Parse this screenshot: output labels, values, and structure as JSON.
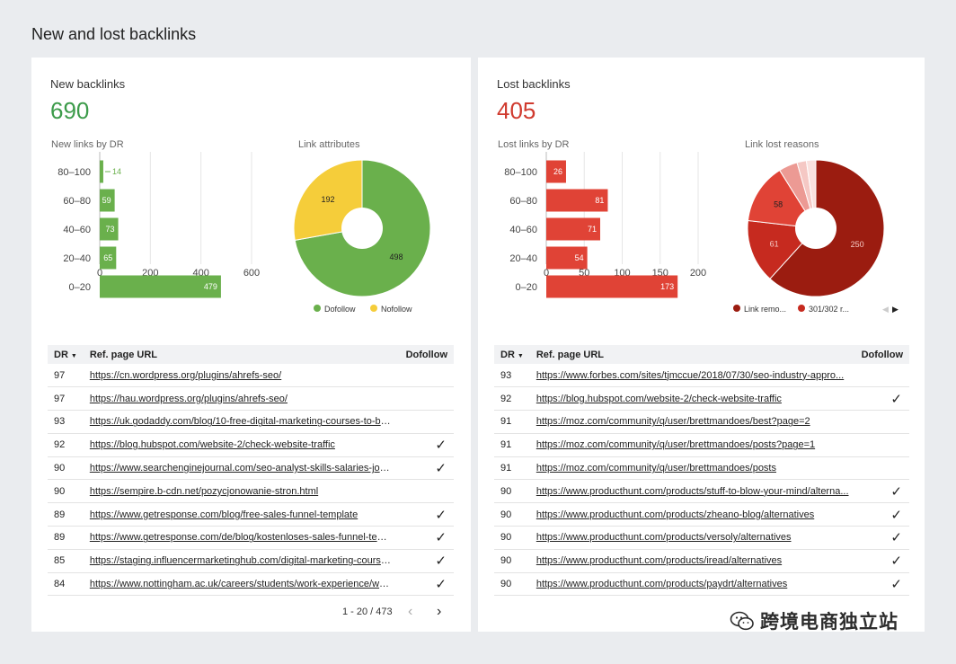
{
  "page": {
    "title": "New and lost backlinks"
  },
  "new_backlinks": {
    "title": "New backlinks",
    "total": "690",
    "bar_title": "New links by DR",
    "pie_title": "Link attributes",
    "color": "#6ab04c",
    "chart_data": {
      "type": "bar",
      "orientation": "horizontal",
      "categories": [
        "80–100",
        "60–80",
        "40–60",
        "20–40",
        "0–20"
      ],
      "values": [
        14,
        59,
        73,
        65,
        479
      ],
      "xlim": [
        0,
        600
      ],
      "xticks": [
        "0",
        "200",
        "400",
        "600"
      ],
      "grid": true
    },
    "pie_data": {
      "type": "pie",
      "donut": true,
      "slices": [
        {
          "name": "Dofollow",
          "value": 498,
          "color": "#6ab04c"
        },
        {
          "name": "Nofollow",
          "value": 192,
          "color": "#f5cd3a"
        }
      ]
    },
    "table": {
      "col_dr": "DR",
      "col_url": "Ref. page URL",
      "col_dofollow": "Dofollow",
      "rows": [
        {
          "dr": "97",
          "url": "https://cn.wordpress.org/plugins/ahrefs-seo/",
          "dofollow": ""
        },
        {
          "dr": "97",
          "url": "https://hau.wordpress.org/plugins/ahrefs-seo/",
          "dofollow": ""
        },
        {
          "dr": "93",
          "url": "https://uk.godaddy.com/blog/10-free-digital-marketing-courses-to-boo...",
          "dofollow": ""
        },
        {
          "dr": "92",
          "url": "https://blog.hubspot.com/website-2/check-website-traffic",
          "dofollow": "✓"
        },
        {
          "dr": "90",
          "url": "https://www.searchenginejournal.com/seo-analyst-skills-salaries-jobs/...",
          "dofollow": "✓"
        },
        {
          "dr": "90",
          "url": "https://sempire.b-cdn.net/pozycjonowanie-stron.html",
          "dofollow": ""
        },
        {
          "dr": "89",
          "url": "https://www.getresponse.com/blog/free-sales-funnel-template",
          "dofollow": "✓"
        },
        {
          "dr": "89",
          "url": "https://www.getresponse.com/de/blog/kostenloses-sales-funnel-temp...",
          "dofollow": "✓"
        },
        {
          "dr": "85",
          "url": "https://staging.influencermarketinghub.com/digital-marketing-courses/",
          "dofollow": "✓"
        },
        {
          "dr": "84",
          "url": "https://www.nottingham.ac.uk/careers/students/work-experience/wha...",
          "dofollow": "✓"
        }
      ]
    },
    "pager": {
      "range": "1 - 20 / 473",
      "prev": "‹",
      "next": "›"
    }
  },
  "lost_backlinks": {
    "title": "Lost backlinks",
    "total": "405",
    "bar_title": "Lost links by DR",
    "pie_title": "Link lost reasons",
    "color": "#e04336",
    "chart_data": {
      "type": "bar",
      "orientation": "horizontal",
      "categories": [
        "80–100",
        "60–80",
        "40–60",
        "20–40",
        "0–20"
      ],
      "values": [
        26,
        81,
        71,
        54,
        173
      ],
      "xlim": [
        0,
        200
      ],
      "xticks": [
        "0",
        "50",
        "100",
        "150",
        "200"
      ],
      "grid": true
    },
    "pie_data": {
      "type": "pie",
      "donut": true,
      "slices": [
        {
          "name": "Link removed",
          "value": 250,
          "color": "#9b1c10"
        },
        {
          "name": "301/302 redirect",
          "value": 61,
          "color": "#c62a1f"
        },
        {
          "name": "",
          "value": 58,
          "color": "#e04336"
        },
        {
          "name": "",
          "value": 18,
          "color": "#ec9a94"
        },
        {
          "name": "",
          "value": 9,
          "color": "#f5c8c4"
        },
        {
          "name": "",
          "value": 9,
          "color": "#fae1de"
        }
      ],
      "legend": [
        "Link remo...",
        "301/302 r..."
      ]
    },
    "table": {
      "col_dr": "DR",
      "col_url": "Ref. page URL",
      "col_dofollow": "Dofollow",
      "rows": [
        {
          "dr": "93",
          "url": "https://www.forbes.com/sites/tjmccue/2018/07/30/seo-industry-appro...",
          "dofollow": ""
        },
        {
          "dr": "92",
          "url": "https://blog.hubspot.com/website-2/check-website-traffic",
          "dofollow": "✓"
        },
        {
          "dr": "91",
          "url": "https://moz.com/community/q/user/brettmandoes/best?page=2",
          "dofollow": ""
        },
        {
          "dr": "91",
          "url": "https://moz.com/community/q/user/brettmandoes/posts?page=1",
          "dofollow": ""
        },
        {
          "dr": "91",
          "url": "https://moz.com/community/q/user/brettmandoes/posts",
          "dofollow": ""
        },
        {
          "dr": "90",
          "url": "https://www.producthunt.com/products/stuff-to-blow-your-mind/alterna...",
          "dofollow": "✓"
        },
        {
          "dr": "90",
          "url": "https://www.producthunt.com/products/zheano-blog/alternatives",
          "dofollow": "✓"
        },
        {
          "dr": "90",
          "url": "https://www.producthunt.com/products/versoly/alternatives",
          "dofollow": "✓"
        },
        {
          "dr": "90",
          "url": "https://www.producthunt.com/products/iread/alternatives",
          "dofollow": "✓"
        },
        {
          "dr": "90",
          "url": "https://www.producthunt.com/products/paydrt/alternatives",
          "dofollow": "✓"
        }
      ]
    }
  },
  "watermark": {
    "text": "跨境电商独立站"
  }
}
